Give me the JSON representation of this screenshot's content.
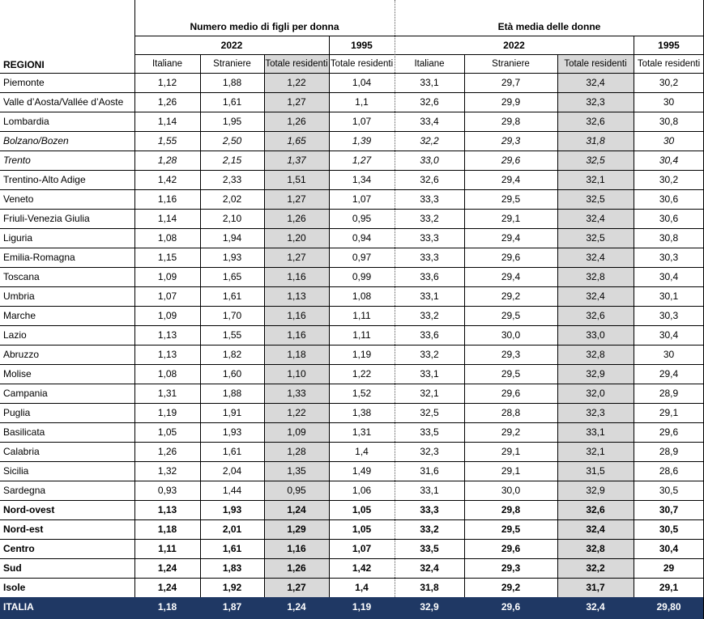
{
  "header": {
    "group1_title": "Numero medio di figli per donna",
    "group2_title": "Età media delle donne",
    "year_2022": "2022",
    "year_1995": "1995",
    "regions_label": "REGIONI",
    "columns": [
      "Italiane",
      "Straniere",
      "Totale residenti",
      "Totale residenti",
      "Italiane",
      "Straniere",
      "Totale residenti",
      "Totale residenti"
    ]
  },
  "rows": [
    {
      "name": "Piemonte",
      "style": "normal",
      "values": [
        "1,12",
        "1,88",
        "1,22",
        "1,04",
        "33,1",
        "29,7",
        "32,4",
        "30,2"
      ]
    },
    {
      "name": "Valle d’Aosta/Vallée d’Aoste",
      "style": "normal",
      "values": [
        "1,26",
        "1,61",
        "1,27",
        "1,1",
        "32,6",
        "29,9",
        "32,3",
        "30"
      ]
    },
    {
      "name": "Lombardia",
      "style": "normal",
      "values": [
        "1,14",
        "1,95",
        "1,26",
        "1,07",
        "33,4",
        "29,8",
        "32,6",
        "30,8"
      ]
    },
    {
      "name": "Bolzano/Bozen",
      "style": "italic",
      "values": [
        "1,55",
        "2,50",
        "1,65",
        "1,39",
        "32,2",
        "29,3",
        "31,8",
        "30"
      ]
    },
    {
      "name": "Trento",
      "style": "italic",
      "values": [
        "1,28",
        "2,15",
        "1,37",
        "1,27",
        "33,0",
        "29,6",
        "32,5",
        "30,4"
      ]
    },
    {
      "name": "Trentino-Alto Adige",
      "style": "normal",
      "values": [
        "1,42",
        "2,33",
        "1,51",
        "1,34",
        "32,6",
        "29,4",
        "32,1",
        "30,2"
      ]
    },
    {
      "name": "Veneto",
      "style": "normal",
      "values": [
        "1,16",
        "2,02",
        "1,27",
        "1,07",
        "33,3",
        "29,5",
        "32,5",
        "30,6"
      ]
    },
    {
      "name": "Friuli-Venezia Giulia",
      "style": "normal",
      "values": [
        "1,14",
        "2,10",
        "1,26",
        "0,95",
        "33,2",
        "29,1",
        "32,4",
        "30,6"
      ]
    },
    {
      "name": "Liguria",
      "style": "normal",
      "values": [
        "1,08",
        "1,94",
        "1,20",
        "0,94",
        "33,3",
        "29,4",
        "32,5",
        "30,8"
      ]
    },
    {
      "name": "Emilia-Romagna",
      "style": "normal",
      "values": [
        "1,15",
        "1,93",
        "1,27",
        "0,97",
        "33,3",
        "29,6",
        "32,4",
        "30,3"
      ]
    },
    {
      "name": "Toscana",
      "style": "normal",
      "values": [
        "1,09",
        "1,65",
        "1,16",
        "0,99",
        "33,6",
        "29,4",
        "32,8",
        "30,4"
      ]
    },
    {
      "name": "Umbria",
      "style": "normal",
      "values": [
        "1,07",
        "1,61",
        "1,13",
        "1,08",
        "33,1",
        "29,2",
        "32,4",
        "30,1"
      ]
    },
    {
      "name": "Marche",
      "style": "normal",
      "values": [
        "1,09",
        "1,70",
        "1,16",
        "1,11",
        "33,2",
        "29,5",
        "32,6",
        "30,3"
      ]
    },
    {
      "name": "Lazio",
      "style": "normal",
      "values": [
        "1,13",
        "1,55",
        "1,16",
        "1,11",
        "33,6",
        "30,0",
        "33,0",
        "30,4"
      ]
    },
    {
      "name": "Abruzzo",
      "style": "normal",
      "values": [
        "1,13",
        "1,82",
        "1,18",
        "1,19",
        "33,2",
        "29,3",
        "32,8",
        "30"
      ]
    },
    {
      "name": "Molise",
      "style": "normal",
      "values": [
        "1,08",
        "1,60",
        "1,10",
        "1,22",
        "33,1",
        "29,5",
        "32,9",
        "29,4"
      ]
    },
    {
      "name": "Campania",
      "style": "normal",
      "values": [
        "1,31",
        "1,88",
        "1,33",
        "1,52",
        "32,1",
        "29,6",
        "32,0",
        "28,9"
      ]
    },
    {
      "name": "Puglia",
      "style": "normal",
      "values": [
        "1,19",
        "1,91",
        "1,22",
        "1,38",
        "32,5",
        "28,8",
        "32,3",
        "29,1"
      ]
    },
    {
      "name": "Basilicata",
      "style": "normal",
      "values": [
        "1,05",
        "1,93",
        "1,09",
        "1,31",
        "33,5",
        "29,2",
        "33,1",
        "29,6"
      ]
    },
    {
      "name": "Calabria",
      "style": "normal",
      "values": [
        "1,26",
        "1,61",
        "1,28",
        "1,4",
        "32,3",
        "29,1",
        "32,1",
        "28,9"
      ]
    },
    {
      "name": "Sicilia",
      "style": "normal",
      "values": [
        "1,32",
        "2,04",
        "1,35",
        "1,49",
        "31,6",
        "29,1",
        "31,5",
        "28,6"
      ]
    },
    {
      "name": "Sardegna",
      "style": "normal",
      "values": [
        "0,93",
        "1,44",
        "0,95",
        "1,06",
        "33,1",
        "30,0",
        "32,9",
        "30,5"
      ]
    },
    {
      "name": "Nord-ovest",
      "style": "bold",
      "values": [
        "1,13",
        "1,93",
        "1,24",
        "1,05",
        "33,3",
        "29,8",
        "32,6",
        "30,7"
      ]
    },
    {
      "name": "Nord-est",
      "style": "bold",
      "values": [
        "1,18",
        "2,01",
        "1,29",
        "1,05",
        "33,2",
        "29,5",
        "32,4",
        "30,5"
      ]
    },
    {
      "name": "Centro",
      "style": "bold",
      "values": [
        "1,11",
        "1,61",
        "1,16",
        "1,07",
        "33,5",
        "29,6",
        "32,8",
        "30,4"
      ]
    },
    {
      "name": "Sud",
      "style": "bold",
      "values": [
        "1,24",
        "1,83",
        "1,26",
        "1,42",
        "32,4",
        "29,3",
        "32,2",
        "29"
      ]
    },
    {
      "name": "Isole",
      "style": "bold",
      "values": [
        "1,24",
        "1,92",
        "1,27",
        "1,4",
        "31,8",
        "29,2",
        "31,7",
        "29,1"
      ]
    },
    {
      "name": "ITALIA",
      "style": "total",
      "values": [
        "1,18",
        "1,87",
        "1,24",
        "1,19",
        "32,9",
        "29,6",
        "32,4",
        "29,80"
      ]
    }
  ],
  "colors": {
    "shade": "#d9d9d9",
    "total_bg": "#1f3864",
    "total_text": "#ffffff"
  }
}
